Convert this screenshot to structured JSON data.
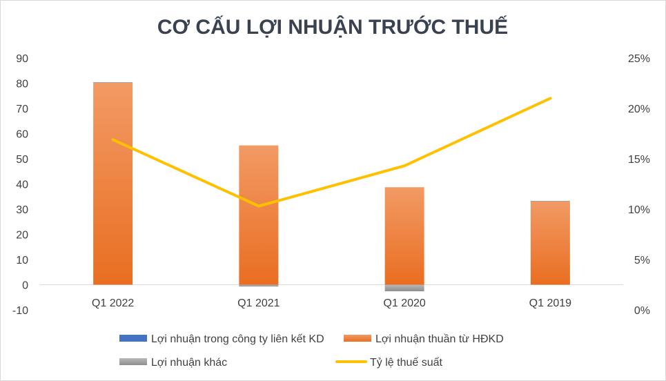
{
  "chart_data": {
    "type": "bar+line",
    "title": "CƠ CẤU LỢI NHUẬN TRƯỚC THUẾ",
    "categories": [
      "Q1 2022",
      "Q1 2021",
      "Q1 2020",
      "Q1 2019"
    ],
    "y_left": {
      "ylim": [
        -10,
        90
      ],
      "ticks": [
        -10,
        0,
        10,
        20,
        30,
        40,
        50,
        60,
        70,
        80,
        90
      ],
      "tick_labels": [
        "-10",
        "0",
        "10",
        "20",
        "30",
        "40",
        "50",
        "60",
        "70",
        "80",
        "90"
      ]
    },
    "y_right": {
      "ylim": [
        0,
        25
      ],
      "ticks": [
        0,
        5,
        10,
        15,
        20,
        25
      ],
      "tick_labels": [
        "0%",
        "5%",
        "10%",
        "15%",
        "20%",
        "25%"
      ]
    },
    "series": [
      {
        "name": "Lợi nhuận trong công ty liên kết KD",
        "type": "bar",
        "axis": "left",
        "color": "#4472c4",
        "values": [
          0,
          0,
          0,
          0
        ]
      },
      {
        "name": "Lợi nhuận thuần từ HĐKD",
        "type": "bar",
        "axis": "left",
        "color": "#ed7d31",
        "values": [
          80.2,
          55.3,
          38.7,
          33.2
        ]
      },
      {
        "name": "Lợi nhuận khác",
        "type": "bar",
        "axis": "left",
        "color": "#a5a5a5",
        "values": [
          0.2,
          -0.7,
          -2.6,
          0.1
        ]
      },
      {
        "name": "Tỷ lệ thuế suất",
        "type": "line",
        "axis": "right",
        "color": "#ffc000",
        "values": [
          16.9,
          10.3,
          14.3,
          21.0
        ]
      }
    ],
    "grid": false,
    "legend_position": "bottom"
  }
}
